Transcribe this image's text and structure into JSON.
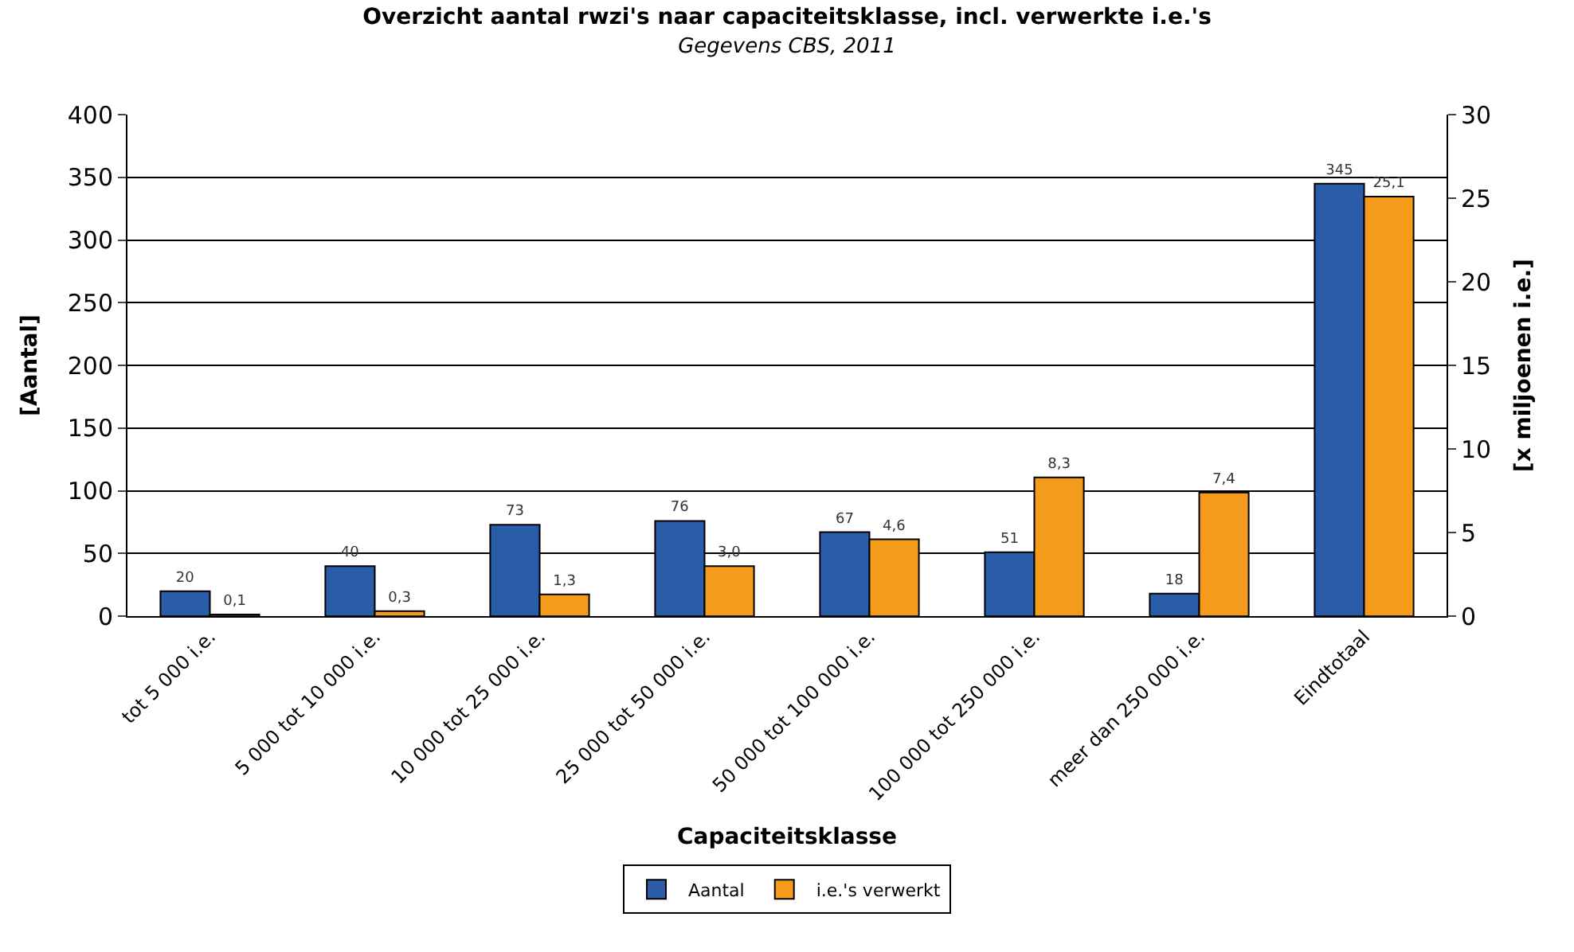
{
  "chart_data": {
    "type": "bar",
    "title": "Overzicht aantal rwzi's naar capaciteitsklasse, incl. verwerkte i.e.'s",
    "subtitle": "Gegevens CBS, 2011",
    "xlabel": "Capaciteitsklasse",
    "ylabel": "[Aantal]",
    "y2label": "[x miljoenen i.e.]",
    "categories": [
      "tot 5 000 i.e.",
      "5 000 tot 10 000 i.e.",
      "10 000 tot 25 000 i.e.",
      "25 000 tot 50 000 i.e.",
      "50 000 tot 100 000 i.e.",
      "100 000 tot 250 000 i.e.",
      "meer dan 250 000 i.e.",
      "Eindtotaal"
    ],
    "series": [
      {
        "name": "Aantal",
        "color": "#2a5ca8",
        "values": [
          20,
          40,
          73,
          76,
          67,
          51,
          18,
          345
        ],
        "value_labels": [
          "20",
          "40",
          "73",
          "76",
          "67",
          "51",
          "18",
          "345"
        ]
      },
      {
        "name": "i.e.'s verwerkt",
        "color": "#f59b1c",
        "axis": "y2",
        "values": [
          0.1,
          0.3,
          1.3,
          3.0,
          4.6,
          8.3,
          7.4,
          25.1
        ],
        "value_labels": [
          "0,1",
          "0,3",
          "1,3",
          "3,0",
          "4,6",
          "8,3",
          "7,4",
          "25,1"
        ]
      }
    ],
    "ylim": [
      0,
      400
    ],
    "yticks": [
      0,
      50,
      100,
      150,
      200,
      250,
      300,
      350,
      400
    ],
    "y2lim": [
      0,
      30
    ],
    "y2ticks": [
      0,
      5,
      10,
      15,
      20,
      25,
      30
    ],
    "grid": "y",
    "legend": "bottom"
  }
}
